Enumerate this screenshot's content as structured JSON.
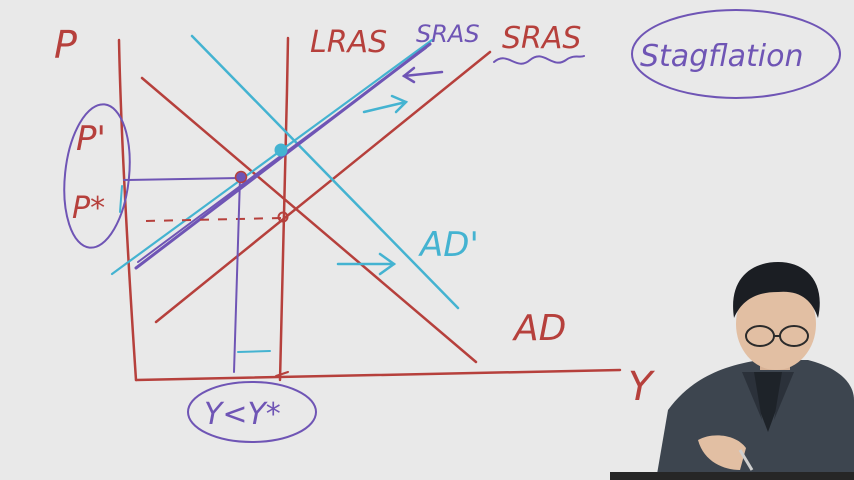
{
  "diagram": {
    "labels": {
      "price_axis": "P",
      "output_axis": "Y",
      "lras": "LRAS",
      "sras_new": "SRAS",
      "sras_original": "SRAS",
      "stagflation": "Stagflation",
      "ad_new": "AD'",
      "ad_original": "AD",
      "price_new": "P'",
      "price_star": "P*",
      "output_note": "Y<Y*"
    },
    "colors": {
      "red": "#b6403c",
      "purple": "#6f55b5",
      "cyan": "#44b3d1",
      "background": "#e9e9e9"
    }
  }
}
